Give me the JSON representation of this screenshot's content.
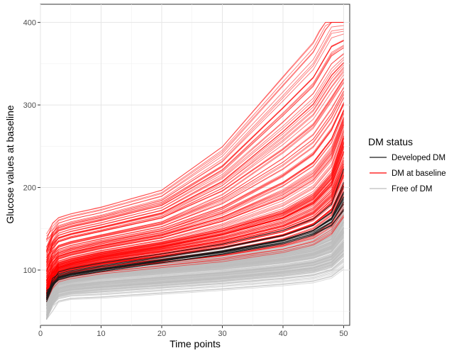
{
  "chart_data": {
    "type": "line",
    "title": "",
    "xlabel": "Time points",
    "ylabel": "Glucose values at baseline",
    "xlim": [
      0,
      51
    ],
    "ylim": [
      33,
      422
    ],
    "xticks": [
      0,
      10,
      20,
      30,
      40,
      50
    ],
    "yticks": [
      100,
      200,
      300,
      400
    ],
    "grid": true,
    "legend": {
      "title": "DM status",
      "position": "right",
      "entries": [
        {
          "label": "Developed DM",
          "color": "#1a1a1a"
        },
        {
          "label": "DM at baseline",
          "color": "#ff0000"
        },
        {
          "label": "Free of DM",
          "color": "#bebebe"
        }
      ]
    },
    "series_groups": [
      {
        "name": "Free of DM",
        "color": "#bebebe",
        "n_lines": 200,
        "representative_trajectories": [
          {
            "label": "low",
            "x": [
              1,
              2,
              5,
              10,
              20,
              30,
              40,
              45,
              48,
              50
            ],
            "y": [
              40,
              65,
              70,
              72,
              77,
              82,
              88,
              92,
              98,
              110
            ]
          },
          {
            "label": "median",
            "x": [
              1,
              2,
              5,
              10,
              20,
              30,
              40,
              45,
              48,
              50
            ],
            "y": [
              75,
              82,
              87,
              92,
              98,
              104,
              112,
              118,
              126,
              145
            ]
          },
          {
            "label": "high",
            "x": [
              1,
              2,
              5,
              10,
              20,
              30,
              40,
              45,
              48,
              50
            ],
            "y": [
              90,
              96,
              102,
              106,
              112,
              120,
              132,
              142,
              155,
              195
            ]
          }
        ]
      },
      {
        "name": "DM at baseline",
        "color": "#ff0000",
        "n_lines": 150,
        "representative_trajectories": [
          {
            "label": "low",
            "x": [
              1,
              2,
              5,
              10,
              20,
              30,
              40,
              45,
              48,
              50
            ],
            "y": [
              80,
              88,
              94,
              100,
              108,
              116,
              128,
              138,
              152,
              175
            ]
          },
          {
            "label": "median",
            "x": [
              1,
              2,
              5,
              10,
              20,
              30,
              40,
              45,
              48,
              50
            ],
            "y": [
              95,
              105,
              112,
              120,
              132,
              148,
              170,
              190,
              215,
              260
            ]
          },
          {
            "label": "high",
            "x": [
              1,
              2,
              5,
              10,
              20,
              30,
              40,
              45,
              48,
              50
            ],
            "y": [
              145,
              155,
              162,
              170,
              190,
              240,
              320,
              360,
              400,
              400
            ]
          }
        ]
      },
      {
        "name": "Developed DM",
        "color": "#1a1a1a",
        "n_lines": 12,
        "representative_trajectories": [
          {
            "label": "low",
            "x": [
              1,
              2,
              5,
              10,
              20,
              30,
              40,
              45,
              48,
              50
            ],
            "y": [
              78,
              86,
              92,
              98,
              108,
              118,
              130,
              140,
              150,
              165
            ]
          },
          {
            "label": "median",
            "x": [
              1,
              2,
              5,
              10,
              20,
              30,
              40,
              45,
              48,
              50
            ],
            "y": [
              82,
              90,
              96,
              102,
              113,
              124,
              138,
              150,
              165,
              195
            ]
          },
          {
            "label": "high",
            "x": [
              1,
              2,
              5,
              10,
              20,
              30,
              40,
              45,
              48,
              50
            ],
            "y": [
              88,
              95,
              101,
              108,
              119,
              131,
              148,
              162,
              180,
              225
            ]
          }
        ]
      }
    ]
  }
}
